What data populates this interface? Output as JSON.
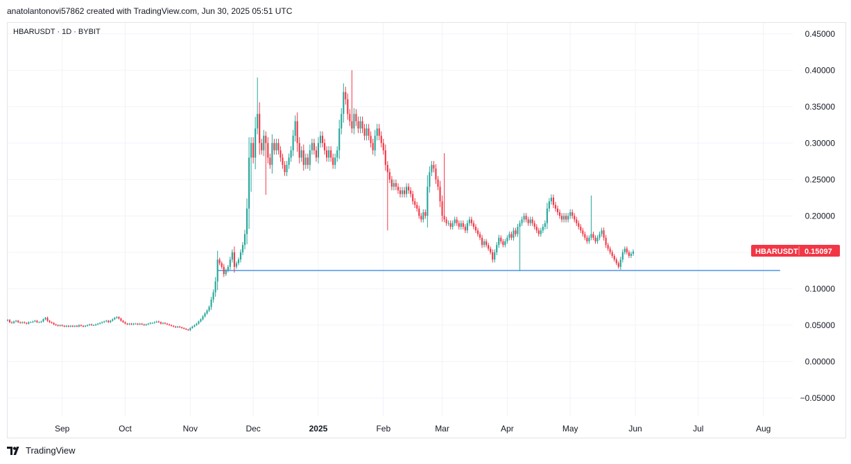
{
  "credit": "anatolantonovi57862 created with TradingView.com, Jun 30, 2025 05:51 UTC",
  "footer": {
    "brand": "TradingView",
    "logo_icon": "tradingview-logo-icon"
  },
  "chart_data": {
    "type": "candlestick",
    "symbol_header": "HBARUSDT · 1D · BYBIT",
    "symbol": "HBARUSDT",
    "last_price": "0.15097",
    "colors": {
      "up": "#26a69a",
      "down": "#f23645",
      "support_line": "#4f94e8",
      "grid": "#f0f3fa",
      "label_bg": "#f23645"
    },
    "y_ticks": [
      "0.45000",
      "0.40000",
      "0.35000",
      "0.30000",
      "0.25000",
      "0.20000",
      "0.15000",
      "0.10000",
      "0.05000",
      "0.00000",
      "−0.05000"
    ],
    "ylim": [
      -0.075,
      0.465
    ],
    "x_ticks": [
      {
        "label": "Sep",
        "date": "2024-09-01",
        "bold": false
      },
      {
        "label": "Oct",
        "date": "2024-10-01",
        "bold": false
      },
      {
        "label": "Nov",
        "date": "2024-11-01",
        "bold": false
      },
      {
        "label": "Dec",
        "date": "2024-12-01",
        "bold": false
      },
      {
        "label": "2025",
        "date": "2025-01-01",
        "bold": true
      },
      {
        "label": "Feb",
        "date": "2025-02-01",
        "bold": false
      },
      {
        "label": "Mar",
        "date": "2025-03-01",
        "bold": false
      },
      {
        "label": "Apr",
        "date": "2025-04-01",
        "bold": false
      },
      {
        "label": "May",
        "date": "2025-05-01",
        "bold": false
      },
      {
        "label": "Jun",
        "date": "2025-06-01",
        "bold": false
      },
      {
        "label": "Jul",
        "date": "2025-07-01",
        "bold": false
      },
      {
        "label": "Aug",
        "date": "2025-08-01",
        "bold": false
      }
    ],
    "xlim": [
      "2024-08-06",
      "2025-08-15"
    ],
    "support_line": {
      "price": 0.125,
      "from": "2024-11-14",
      "to": "2025-08-09"
    },
    "closes_start_date": "2024-08-06",
    "daily_close": [
      0.057,
      0.054,
      0.053,
      0.055,
      0.056,
      0.054,
      0.053,
      0.054,
      0.053,
      0.052,
      0.054,
      0.054,
      0.055,
      0.056,
      0.054,
      0.054,
      0.055,
      0.058,
      0.06,
      0.056,
      0.054,
      0.053,
      0.051,
      0.05,
      0.049,
      0.05,
      0.049,
      0.048,
      0.049,
      0.048,
      0.049,
      0.048,
      0.049,
      0.048,
      0.05,
      0.049,
      0.048,
      0.049,
      0.05,
      0.051,
      0.05,
      0.05,
      0.051,
      0.052,
      0.053,
      0.054,
      0.055,
      0.056,
      0.054,
      0.056,
      0.058,
      0.06,
      0.061,
      0.059,
      0.056,
      0.054,
      0.052,
      0.051,
      0.052,
      0.051,
      0.052,
      0.052,
      0.051,
      0.052,
      0.051,
      0.05,
      0.051,
      0.052,
      0.053,
      0.053,
      0.054,
      0.055,
      0.054,
      0.052,
      0.053,
      0.052,
      0.051,
      0.05,
      0.049,
      0.048,
      0.047,
      0.048,
      0.047,
      0.046,
      0.045,
      0.044,
      0.043,
      0.046,
      0.048,
      0.05,
      0.052,
      0.055,
      0.058,
      0.062,
      0.066,
      0.07,
      0.075,
      0.085,
      0.095,
      0.11,
      0.14,
      0.135,
      0.13,
      0.12,
      0.125,
      0.13,
      0.14,
      0.15,
      0.13,
      0.135,
      0.14,
      0.15,
      0.16,
      0.175,
      0.21,
      0.28,
      0.3,
      0.28,
      0.32,
      0.34,
      0.3,
      0.29,
      0.31,
      0.3,
      0.28,
      0.27,
      0.3,
      0.29,
      0.3,
      0.29,
      0.28,
      0.27,
      0.26,
      0.27,
      0.28,
      0.29,
      0.31,
      0.33,
      0.3,
      0.28,
      0.29,
      0.27,
      0.28,
      0.27,
      0.29,
      0.3,
      0.29,
      0.28,
      0.3,
      0.31,
      0.3,
      0.29,
      0.28,
      0.29,
      0.28,
      0.27,
      0.28,
      0.29,
      0.32,
      0.34,
      0.37,
      0.36,
      0.34,
      0.33,
      0.32,
      0.34,
      0.33,
      0.32,
      0.33,
      0.32,
      0.31,
      0.32,
      0.31,
      0.3,
      0.29,
      0.31,
      0.32,
      0.31,
      0.3,
      0.29,
      0.27,
      0.26,
      0.25,
      0.24,
      0.245,
      0.24,
      0.235,
      0.23,
      0.235,
      0.23,
      0.24,
      0.235,
      0.23,
      0.22,
      0.215,
      0.21,
      0.2,
      0.195,
      0.205,
      0.2,
      0.24,
      0.26,
      0.27,
      0.265,
      0.25,
      0.24,
      0.22,
      0.2,
      0.195,
      0.19,
      0.19,
      0.185,
      0.19,
      0.195,
      0.19,
      0.185,
      0.19,
      0.185,
      0.18,
      0.19,
      0.195,
      0.19,
      0.185,
      0.18,
      0.175,
      0.17,
      0.16,
      0.165,
      0.16,
      0.155,
      0.15,
      0.14,
      0.15,
      0.16,
      0.17,
      0.165,
      0.16,
      0.165,
      0.17,
      0.175,
      0.17,
      0.18,
      0.175,
      0.185,
      0.19,
      0.195,
      0.2,
      0.195,
      0.19,
      0.195,
      0.19,
      0.185,
      0.18,
      0.175,
      0.18,
      0.185,
      0.19,
      0.21,
      0.22,
      0.225,
      0.215,
      0.21,
      0.205,
      0.2,
      0.195,
      0.2,
      0.195,
      0.2,
      0.205,
      0.2,
      0.195,
      0.19,
      0.185,
      0.18,
      0.175,
      0.17,
      0.165,
      0.17,
      0.175,
      0.17,
      0.165,
      0.17,
      0.175,
      0.18,
      0.17,
      0.16,
      0.155,
      0.15,
      0.145,
      0.14,
      0.135,
      0.13,
      0.14,
      0.15,
      0.155,
      0.15,
      0.145,
      0.148,
      0.151
    ],
    "marked_lows": [
      {
        "date": "2024-11-30",
        "price": 0.233
      },
      {
        "date": "2024-12-07",
        "price": 0.229
      },
      {
        "date": "2025-02-03",
        "price": 0.18
      },
      {
        "date": "2025-04-07",
        "price": 0.124
      },
      {
        "date": "2025-06-22",
        "price": 0.125
      }
    ],
    "marked_highs": [
      {
        "date": "2024-12-03",
        "price": 0.39
      },
      {
        "date": "2025-01-17",
        "price": 0.4
      },
      {
        "date": "2025-03-02",
        "price": 0.286
      },
      {
        "date": "2025-05-11",
        "price": 0.228
      }
    ]
  }
}
